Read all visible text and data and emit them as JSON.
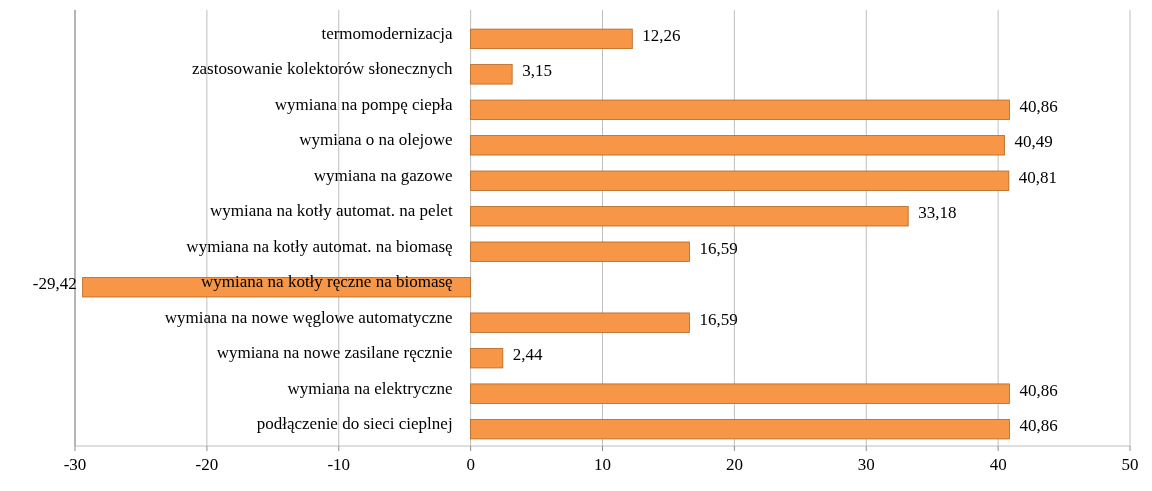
{
  "chart_data": {
    "type": "bar",
    "orientation": "horizontal",
    "categories": [
      "termomodernizacja",
      "zastosowanie kolektorów słonecznych",
      "wymiana na pompę ciepła",
      "wymiana o na olejowe",
      "wymiana na gazowe",
      "wymiana na kotły automat. na pelet",
      "wymiana na kotły automat. na biomasę",
      "wymiana na kotły ręczne na biomasę",
      "wymiana na nowe węglowe automatyczne",
      "wymiana na nowe zasilane ręcznie",
      "wymiana na elektryczne",
      "podłączenie do sieci cieplnej"
    ],
    "values": [
      12.26,
      3.15,
      40.86,
      40.49,
      40.81,
      33.18,
      16.59,
      -29.42,
      16.59,
      2.44,
      40.86,
      40.86
    ],
    "value_labels": [
      "12,26",
      "3,15",
      "40,86",
      "40,49",
      "40,81",
      "33,18",
      "16,59",
      "-29,42",
      "16,59",
      "2,44",
      "40,86",
      "40,86"
    ],
    "color": "#f79646",
    "xlim": [
      -30,
      50
    ],
    "xticks": [
      -30,
      -20,
      -10,
      0,
      10,
      20,
      30,
      40,
      50
    ],
    "grid": "x"
  }
}
